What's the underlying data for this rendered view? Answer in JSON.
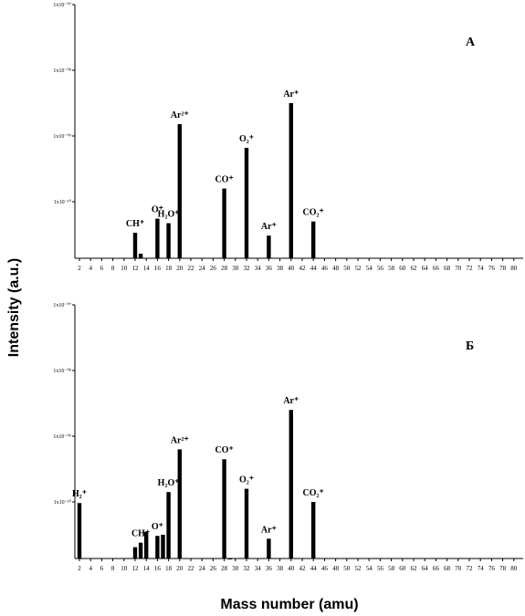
{
  "chart_data": [
    {
      "type": "bar",
      "panel": "A",
      "x_ticks": [
        2,
        4,
        6,
        8,
        10,
        12,
        14,
        16,
        18,
        20,
        22,
        24,
        26,
        28,
        30,
        32,
        34,
        36,
        38,
        40,
        42,
        44,
        46,
        48,
        50,
        52,
        54,
        56,
        58,
        60,
        62,
        64,
        66,
        68,
        70,
        72,
        74,
        76,
        78,
        80
      ],
      "y_scale": "log",
      "y_ticks": [
        "1x10⁻¹⁰",
        "1x10⁻⁰⁹",
        "1x10⁻⁰⁸",
        "1x10⁻⁰⁷"
      ],
      "bars": [
        {
          "x": 12,
          "exp": -10.55
        },
        {
          "x": 13,
          "exp": -10.92
        },
        {
          "x": 16,
          "exp": -10.3
        },
        {
          "x": 18,
          "exp": -10.38
        },
        {
          "x": 20,
          "exp": -8.82
        },
        {
          "x": 28,
          "exp": -9.8
        },
        {
          "x": 32,
          "exp": -9.18
        },
        {
          "x": 36,
          "exp": -10.6
        },
        {
          "x": 40,
          "exp": -8.5
        },
        {
          "x": 44,
          "exp": -10.35
        }
      ],
      "labels": [
        {
          "x": 12,
          "text": "CH⁺"
        },
        {
          "x": 16,
          "text": "O⁺"
        },
        {
          "x": 18,
          "text": "H₂O⁺"
        },
        {
          "x": 20,
          "text": "Ar²⁺"
        },
        {
          "x": 28,
          "text": "CO⁺"
        },
        {
          "x": 32,
          "text": "O₂⁺"
        },
        {
          "x": 36,
          "text": "Ar⁺"
        },
        {
          "x": 40,
          "text": "Ar⁺"
        },
        {
          "x": 44,
          "text": "CO₂⁺"
        }
      ]
    },
    {
      "type": "bar",
      "panel": "Б",
      "x_ticks": [
        2,
        4,
        6,
        8,
        10,
        12,
        14,
        16,
        18,
        20,
        22,
        24,
        26,
        28,
        30,
        32,
        34,
        36,
        38,
        40,
        42,
        44,
        46,
        48,
        50,
        52,
        54,
        56,
        58,
        60,
        62,
        64,
        66,
        68,
        70,
        72,
        74,
        76,
        78,
        80
      ],
      "y_scale": "log",
      "y_ticks": [
        "1x10⁻¹⁰",
        "1x10⁻⁰⁹",
        "1x10⁻⁰⁸",
        "1x10⁻⁰⁷"
      ],
      "bars": [
        {
          "x": 2,
          "exp": -10.02
        },
        {
          "x": 12,
          "exp": -10.8
        },
        {
          "x": 13,
          "exp": -10.72
        },
        {
          "x": 14,
          "exp": -10.53
        },
        {
          "x": 16,
          "exp": -10.6
        },
        {
          "x": 17,
          "exp": -10.58
        },
        {
          "x": 18,
          "exp": -9.85
        },
        {
          "x": 20,
          "exp": -9.2
        },
        {
          "x": 28,
          "exp": -9.35
        },
        {
          "x": 29,
          "exp": -11.0
        },
        {
          "x": 32,
          "exp": -9.8
        },
        {
          "x": 36,
          "exp": -10.65
        },
        {
          "x": 40,
          "exp": -8.6
        },
        {
          "x": 44,
          "exp": -10.0
        }
      ],
      "labels": [
        {
          "x": 2,
          "text": "H₂⁺"
        },
        {
          "x": 13,
          "text": "CH⁺"
        },
        {
          "x": 16,
          "text": "O⁺"
        },
        {
          "x": 18,
          "text": "H₂O⁺"
        },
        {
          "x": 20,
          "text": "Ar²⁺"
        },
        {
          "x": 28,
          "text": "CO⁺"
        },
        {
          "x": 32,
          "text": "O₂⁺"
        },
        {
          "x": 36,
          "text": "Ar⁺"
        },
        {
          "x": 40,
          "text": "Ar⁺"
        },
        {
          "x": 44,
          "text": "CO₂⁺"
        }
      ]
    }
  ],
  "ylabel": "Intensity (a.u.)",
  "xlabel": "Mass number (amu)"
}
